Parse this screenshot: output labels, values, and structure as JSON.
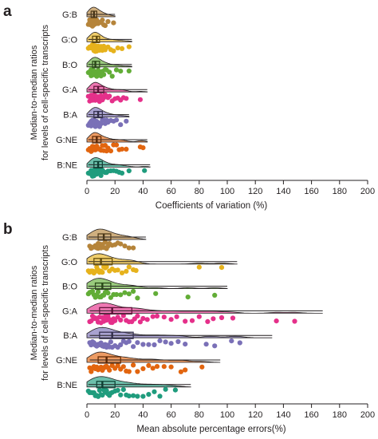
{
  "colors": {
    "G:B": "#b5843a",
    "G:O": "#e6b21c",
    "B:O": "#62ad37",
    "G:A": "#e5308a",
    "B:A": "#7a70b7",
    "G:NE": "#e2650f",
    "B:NE": "#1f9c7d"
  },
  "chart_data": [
    {
      "panel": "a",
      "type": "raincloud",
      "categories": [
        "G:B",
        "G:O",
        "B:O",
        "G:A",
        "B:A",
        "G:NE",
        "B:NE"
      ],
      "ylabel": [
        "Median-to-median ratios",
        "for levels of cell-specific transcripts"
      ],
      "xlabel": "Coefficients of variation (%)",
      "xlim": [
        0,
        200
      ],
      "xticks": [
        0,
        20,
        40,
        60,
        80,
        100,
        120,
        140,
        160,
        180,
        200
      ],
      "series": [
        {
          "name": "G:B",
          "box": {
            "q1": 3,
            "median": 5,
            "q3": 7
          },
          "whisker": [
            0,
            20
          ],
          "points": [
            1,
            2,
            2,
            3,
            3,
            3,
            4,
            4,
            4,
            5,
            5,
            5,
            6,
            6,
            7,
            7,
            8,
            9,
            10,
            11,
            12,
            13,
            15,
            19
          ]
        },
        {
          "name": "G:O",
          "box": {
            "q1": 4,
            "median": 7,
            "q3": 9
          },
          "whisker": [
            1,
            32
          ],
          "points": [
            1,
            2,
            3,
            3,
            4,
            4,
            5,
            5,
            5,
            6,
            6,
            6,
            7,
            7,
            8,
            8,
            9,
            10,
            11,
            12,
            13,
            15,
            17,
            19,
            22,
            25,
            30
          ]
        },
        {
          "name": "B:O",
          "box": {
            "q1": 4,
            "median": 6,
            "q3": 9
          },
          "whisker": [
            1,
            32
          ],
          "points": [
            1,
            2,
            3,
            3,
            4,
            4,
            5,
            5,
            5,
            6,
            6,
            7,
            7,
            8,
            8,
            9,
            10,
            11,
            12,
            13,
            14,
            16,
            18,
            21,
            24,
            30
          ]
        },
        {
          "name": "G:A",
          "box": {
            "q1": 5,
            "median": 8,
            "q3": 12
          },
          "whisker": [
            1,
            43
          ],
          "points": [
            1,
            2,
            3,
            3,
            4,
            4,
            5,
            5,
            5,
            6,
            6,
            6,
            7,
            7,
            8,
            8,
            9,
            9,
            10,
            11,
            12,
            13,
            14,
            15,
            16,
            18,
            20,
            22,
            24,
            26,
            28,
            38
          ]
        },
        {
          "name": "B:A",
          "box": {
            "q1": 5,
            "median": 8,
            "q3": 11
          },
          "whisker": [
            1,
            30
          ],
          "points": [
            1,
            2,
            3,
            3,
            4,
            4,
            5,
            5,
            5,
            6,
            6,
            7,
            7,
            8,
            8,
            9,
            9,
            10,
            11,
            12,
            13,
            14,
            15,
            17,
            19,
            21,
            24,
            28
          ]
        },
        {
          "name": "G:NE",
          "box": {
            "q1": 4,
            "median": 7,
            "q3": 10
          },
          "whisker": [
            1,
            43
          ],
          "points": [
            1,
            2,
            3,
            3,
            4,
            4,
            5,
            5,
            5,
            6,
            6,
            7,
            7,
            8,
            8,
            9,
            10,
            11,
            12,
            13,
            14,
            15,
            17,
            19,
            21,
            23,
            25,
            28,
            38,
            40
          ]
        },
        {
          "name": "B:NE",
          "box": {
            "q1": 5,
            "median": 8,
            "q3": 11
          },
          "whisker": [
            1,
            45
          ],
          "points": [
            1,
            2,
            3,
            3,
            4,
            4,
            5,
            5,
            6,
            6,
            7,
            7,
            8,
            8,
            9,
            9,
            10,
            11,
            12,
            13,
            14,
            15,
            17,
            19,
            21,
            23,
            25,
            30,
            41
          ]
        }
      ]
    },
    {
      "panel": "b",
      "type": "raincloud",
      "categories": [
        "G:B",
        "G:O",
        "B:O",
        "G:A",
        "B:A",
        "G:NE",
        "B:NE"
      ],
      "ylabel": [
        "Median-to-median ratios",
        "for levels of cell-specific transcripts"
      ],
      "xlabel": "Mean absolute percentage errors(%)",
      "xlim": [
        0,
        200
      ],
      "xticks": [
        0,
        20,
        40,
        60,
        80,
        100,
        120,
        140,
        160,
        180,
        200
      ],
      "series": [
        {
          "name": "G:B",
          "box": {
            "q1": 8,
            "median": 12,
            "q3": 17
          },
          "whisker": [
            1,
            42
          ],
          "points": [
            2,
            3,
            4,
            5,
            6,
            7,
            8,
            8,
            9,
            10,
            11,
            12,
            13,
            14,
            15,
            16,
            18,
            20,
            22,
            24,
            27,
            30,
            33
          ]
        },
        {
          "name": "G:O",
          "box": {
            "q1": 5,
            "median": 10,
            "q3": 18
          },
          "whisker": [
            1,
            107
          ],
          "points": [
            1,
            2,
            3,
            4,
            5,
            6,
            7,
            8,
            9,
            10,
            11,
            12,
            13,
            14,
            16,
            18,
            20,
            22,
            25,
            28,
            30,
            33,
            35,
            80,
            96
          ]
        },
        {
          "name": "B:O",
          "box": {
            "q1": 6,
            "median": 11,
            "q3": 17
          },
          "whisker": [
            1,
            100
          ],
          "points": [
            1,
            2,
            3,
            4,
            5,
            6,
            7,
            8,
            9,
            10,
            11,
            12,
            13,
            14,
            15,
            17,
            19,
            21,
            24,
            27,
            30,
            33,
            36,
            49,
            72,
            91
          ]
        },
        {
          "name": "G:A",
          "box": {
            "q1": 9,
            "median": 18,
            "q3": 32
          },
          "whisker": [
            2,
            168
          ],
          "points": [
            2,
            3,
            4,
            5,
            6,
            7,
            8,
            9,
            10,
            11,
            12,
            13,
            14,
            15,
            16,
            17,
            18,
            19,
            20,
            22,
            24,
            26,
            28,
            30,
            32,
            34,
            36,
            38,
            40,
            43,
            47,
            50,
            55,
            60,
            64,
            70,
            75,
            80,
            86,
            90,
            96,
            104,
            135,
            148
          ]
        },
        {
          "name": "B:A",
          "box": {
            "q1": 9,
            "median": 18,
            "q3": 33
          },
          "whisker": [
            2,
            132
          ],
          "points": [
            2,
            3,
            4,
            5,
            6,
            7,
            8,
            9,
            10,
            11,
            12,
            13,
            14,
            15,
            16,
            17,
            18,
            20,
            22,
            24,
            26,
            28,
            30,
            33,
            36,
            40,
            44,
            48,
            52,
            56,
            60,
            65,
            70,
            85,
            91,
            103,
            109
          ]
        },
        {
          "name": "G:NE",
          "box": {
            "q1": 8,
            "median": 14,
            "q3": 24
          },
          "whisker": [
            2,
            95
          ],
          "points": [
            2,
            3,
            4,
            5,
            6,
            7,
            8,
            9,
            10,
            11,
            12,
            13,
            14,
            15,
            16,
            18,
            20,
            22,
            24,
            26,
            28,
            30,
            33,
            36,
            40,
            44,
            47,
            50,
            55,
            60,
            67,
            70,
            82
          ]
        },
        {
          "name": "B:NE",
          "box": {
            "q1": 7,
            "median": 11,
            "q3": 20
          },
          "whisker": [
            1,
            74
          ],
          "points": [
            1,
            2,
            3,
            4,
            5,
            6,
            7,
            8,
            9,
            10,
            11,
            12,
            13,
            14,
            15,
            16,
            17,
            18,
            20,
            22,
            24,
            26,
            28,
            30,
            33,
            36,
            40,
            44,
            48,
            52,
            56,
            63
          ]
        }
      ]
    }
  ]
}
